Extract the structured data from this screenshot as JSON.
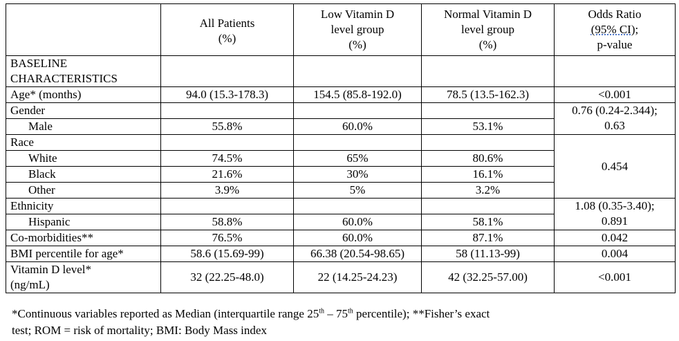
{
  "header": {
    "col_all": [
      "All Patients",
      "(%)"
    ],
    "col_low": [
      "Low Vitamin D",
      "level group",
      "(%)"
    ],
    "col_normal": [
      "Normal Vitamin D",
      "level group",
      "(%)"
    ],
    "col_or": [
      "Odds Ratio",
      "(95% CI);",
      "p-value"
    ]
  },
  "section": [
    "BASELINE",
    "CHARACTERISTICS"
  ],
  "rows": {
    "age": {
      "label": "Age* (months)",
      "all": "94.0 (15.3-178.3)",
      "low": "154.5 (85.8-192.0)",
      "normal": "78.5 (13.5-162.3)",
      "or": "<0.001"
    },
    "gender": {
      "label": "Gender",
      "or": [
        "0.76 (0.24-2.344);",
        "0.63"
      ]
    },
    "male": {
      "label": "Male",
      "all": "55.8%",
      "low": "60.0%",
      "normal": "53.1%"
    },
    "race": {
      "label": "Race",
      "or": "0.454"
    },
    "white": {
      "label": "White",
      "all": "74.5%",
      "low": "65%",
      "normal": "80.6%"
    },
    "black": {
      "label": "Black",
      "all": "21.6%",
      "low": "30%",
      "normal": "16.1%"
    },
    "other": {
      "label": "Other",
      "all": "3.9%",
      "low": "5%",
      "normal": "3.2%"
    },
    "ethnicity": {
      "label": "Ethnicity",
      "or": [
        "1.08 (0.35-3.40);",
        "0.891"
      ]
    },
    "hispanic": {
      "label": "Hispanic",
      "all": "58.8%",
      "low": "60.0%",
      "normal": "58.1%"
    },
    "comorb": {
      "label": "Co-morbidities**",
      "all": "76.5%",
      "low": "60.0%",
      "normal": "87.1%",
      "or": "0.042"
    },
    "bmi": {
      "label": "BMI percentile for age*",
      "all": "58.6 (15.69-99)",
      "low": "66.38 (20.54-98.65)",
      "normal": "58 (11.13-99)",
      "or": "0.004"
    },
    "vitd": {
      "label": [
        "Vitamin D level*",
        "(ng/mL)"
      ],
      "all": "32 (22.25-48.0)",
      "low": "22 (14.25-24.23)",
      "normal": "42 (32.25-57.00)",
      "or": "<0.001"
    }
  },
  "footnote": {
    "part1": "*Continuous variables reported as Median (interquartile range 25",
    "sup1": "th",
    "part2": " – 75",
    "sup2": "th",
    "part3": " percentile); **Fisher’s exact",
    "line2": "test; ROM = risk of mortality; BMI: Body Mass index"
  }
}
